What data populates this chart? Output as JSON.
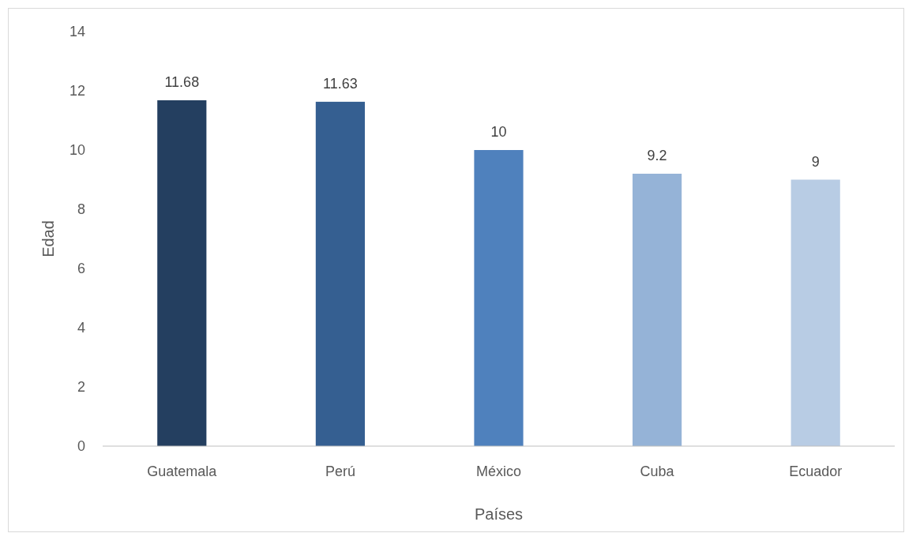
{
  "chart_data": {
    "type": "bar",
    "xlabel": "Países",
    "ylabel": "Edad",
    "categories": [
      "Guatemala",
      "Perú",
      "México",
      "Cuba",
      "Ecuador"
    ],
    "values": [
      11.68,
      11.63,
      10,
      9.2,
      9
    ],
    "colors": [
      "#243f60",
      "#355f91",
      "#4f81bd",
      "#95b3d7",
      "#b8cce4"
    ],
    "ylim": [
      0,
      14
    ],
    "yticks": [
      0,
      2,
      4,
      6,
      8,
      10,
      12,
      14
    ],
    "grid": false,
    "data_labels": true
  }
}
